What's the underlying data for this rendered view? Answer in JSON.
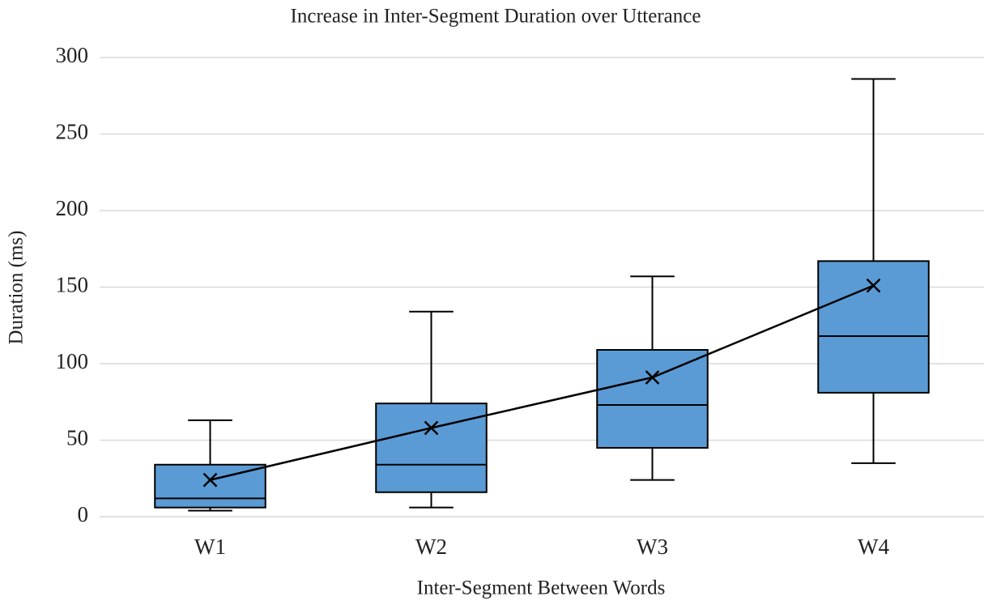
{
  "chart_data": {
    "type": "box",
    "title": "Increase in Inter-Segment Duration over Utterance",
    "x_label": "Inter-Segment Between Words",
    "y_label": "Duration (ms)",
    "categories": [
      "W1",
      "W2",
      "W3",
      "W4"
    ],
    "min": [
      4,
      6,
      24,
      35
    ],
    "q1": [
      6,
      16,
      45,
      81
    ],
    "median": [
      12,
      34,
      73,
      118
    ],
    "q3": [
      34,
      74,
      109,
      167
    ],
    "max": [
      63,
      134,
      157,
      286
    ],
    "mean": [
      24,
      58,
      91,
      151
    ],
    "color": "#5b9bd5",
    "ylim": [
      0,
      300
    ],
    "yticks": [
      0,
      50,
      100,
      150,
      200,
      250,
      300
    ],
    "grid": true
  }
}
